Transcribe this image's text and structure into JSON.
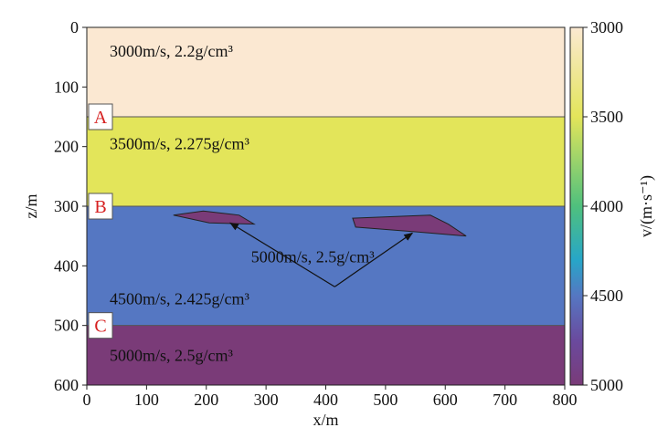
{
  "chart_data": {
    "type": "heatmap",
    "title": "",
    "xlabel": "x/m",
    "ylabel": "z/m",
    "xlim": [
      0,
      800
    ],
    "ylim": [
      600,
      0
    ],
    "x_ticks": [
      0,
      100,
      200,
      300,
      400,
      500,
      600,
      700,
      800
    ],
    "y_ticks": [
      0,
      100,
      200,
      300,
      400,
      500,
      600
    ],
    "colorbar": {
      "label": "v/(m·s⁻¹)",
      "range": [
        3000,
        5000
      ],
      "ticks": [
        3000,
        3500,
        4000,
        4500,
        5000
      ],
      "stops": [
        {
          "value": 3000,
          "color": "#fbe8d2"
        },
        {
          "value": 3500,
          "color": "#e3e55a"
        },
        {
          "value": 4000,
          "color": "#4fc07d"
        },
        {
          "value": 4300,
          "color": "#27a6c8"
        },
        {
          "value": 4500,
          "color": "#5577c2"
        },
        {
          "value": 4750,
          "color": "#6a4a9e"
        },
        {
          "value": 5000,
          "color": "#7a3b78"
        }
      ]
    },
    "layers": [
      {
        "z_top": 0,
        "z_bottom": 150,
        "velocity": 3000,
        "color": "#fbe8d2",
        "label": "3000m/s, 2.2g/cm³"
      },
      {
        "z_top": 150,
        "z_bottom": 300,
        "velocity": 3500,
        "color": "#e3e55a",
        "label": "3500m/s, 2.275g/cm³",
        "marker": "A"
      },
      {
        "z_top": 300,
        "z_bottom": 500,
        "velocity": 4500,
        "color": "#5577c2",
        "label": "4500m/s, 2.425g/cm³",
        "marker": "B"
      },
      {
        "z_top": 500,
        "z_bottom": 600,
        "velocity": 5000,
        "color": "#7a3b78",
        "label": "5000m/s, 2.5g/cm³",
        "marker": "C"
      }
    ],
    "bodies": {
      "label": "5000m/s, 2.5g/cm³",
      "velocity": 5000,
      "color": "#7a3b78",
      "polygons": [
        [
          [
            145,
            315
          ],
          [
            195,
            308
          ],
          [
            255,
            315
          ],
          [
            280,
            330
          ],
          [
            205,
            328
          ]
        ],
        [
          [
            445,
            320
          ],
          [
            575,
            315
          ],
          [
            605,
            330
          ],
          [
            635,
            350
          ],
          [
            540,
            342
          ],
          [
            450,
            335
          ]
        ]
      ],
      "arrow_origin": [
        415,
        435
      ],
      "arrow_targets": [
        [
          240,
          328
        ],
        [
          545,
          345
        ]
      ]
    }
  }
}
